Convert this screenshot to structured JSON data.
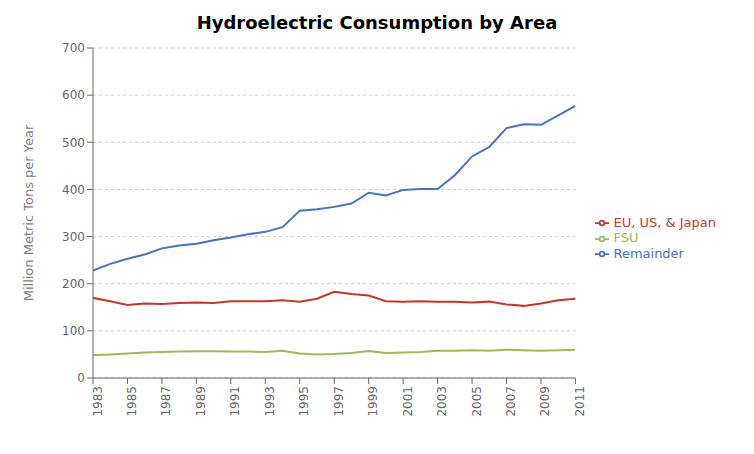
{
  "chart_data": {
    "type": "line",
    "title": "Hydroelectric Consumption by Area",
    "ylabel": "Million Metric Tons per Year",
    "x": [
      1983,
      1984,
      1985,
      1986,
      1987,
      1988,
      1989,
      1990,
      1991,
      1992,
      1993,
      1994,
      1995,
      1996,
      1997,
      1998,
      1999,
      2000,
      2001,
      2002,
      2003,
      2004,
      2005,
      2006,
      2007,
      2008,
      2009,
      2010,
      2011
    ],
    "series": [
      {
        "name": "Remainder",
        "color": "#4472c4",
        "values": [
          228,
          242,
          253,
          262,
          275,
          281,
          285,
          292,
          298,
          305,
          310,
          320,
          355,
          358,
          363,
          370,
          393,
          387,
          399,
          401,
          401,
          430,
          470,
          490,
          530,
          538,
          537,
          557,
          577
        ]
      },
      {
        "name": "EU, US, & Japan",
        "color": "#c0392b",
        "values": [
          170,
          163,
          155,
          158,
          157,
          159,
          160,
          159,
          163,
          163,
          163,
          165,
          162,
          168,
          183,
          178,
          175,
          163,
          162,
          163,
          162,
          162,
          160,
          162,
          156,
          153,
          158,
          165,
          168
        ]
      },
      {
        "name": "FSU",
        "color": "#9bbb59",
        "values": [
          48,
          50,
          52,
          54,
          55,
          56,
          57,
          57,
          56,
          56,
          55,
          58,
          52,
          50,
          51,
          53,
          57,
          53,
          54,
          55,
          58,
          58,
          59,
          58,
          60,
          59,
          58,
          59,
          60
        ]
      }
    ],
    "xlim": [
      1983,
      2011
    ],
    "xticks": [
      1983,
      1985,
      1987,
      1989,
      1991,
      1993,
      1995,
      1997,
      1999,
      2001,
      2003,
      2005,
      2007,
      2009,
      2011
    ],
    "ylim": [
      0,
      700
    ],
    "yticks": [
      0,
      100,
      200,
      300,
      400,
      500,
      600,
      700
    ],
    "grid": true,
    "legend": "right"
  }
}
